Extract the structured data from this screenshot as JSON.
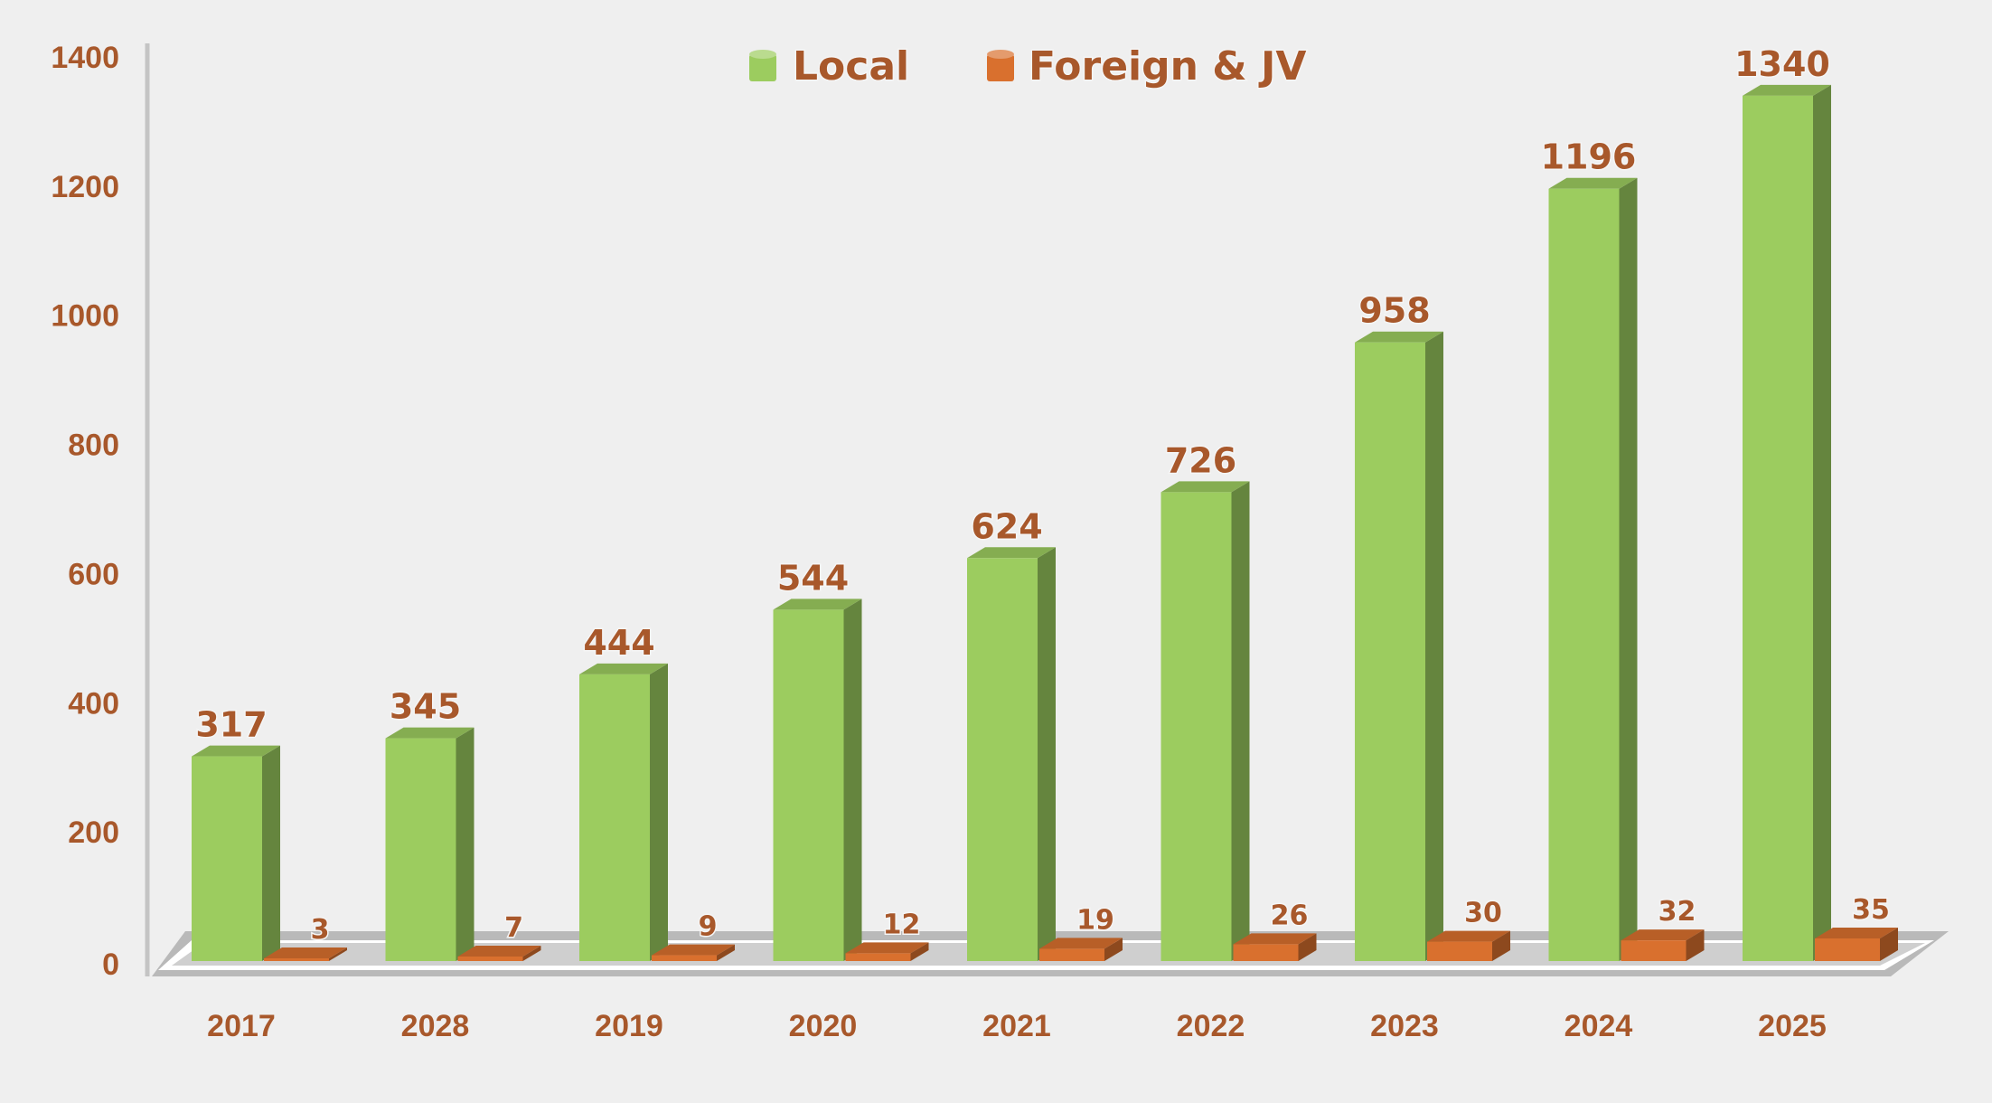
{
  "chart_data": {
    "type": "bar",
    "title": "",
    "xlabel": "",
    "ylabel": "",
    "categories": [
      "2017",
      "2028",
      "2019",
      "2020",
      "2021",
      "2022",
      "2023",
      "2024",
      "2025"
    ],
    "series": [
      {
        "name": "Local",
        "values": [
          317,
          345,
          444,
          544,
          624,
          726,
          958,
          1196,
          1340
        ],
        "color": "#9ccc5f"
      },
      {
        "name": "Foreign & JV",
        "values": [
          3,
          7,
          9,
          12,
          19,
          26,
          30,
          32,
          35
        ],
        "color": "#d9702e"
      }
    ],
    "yticks": [
      "0",
      "200",
      "400",
      "600",
      "800",
      "1000",
      "1200",
      "1400"
    ],
    "ylim": [
      0,
      1400
    ],
    "grid": false,
    "legend_position": "top-center",
    "style": "3d-column"
  }
}
